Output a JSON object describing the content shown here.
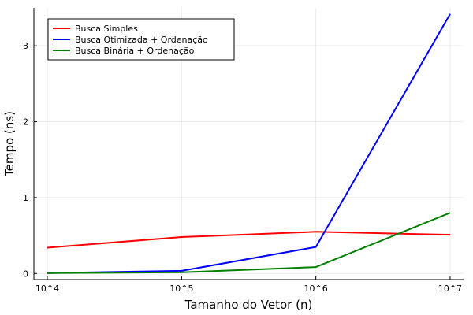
{
  "chart_data": {
    "type": "line",
    "title": "",
    "xlabel": "Tamanho do Vetor (n)",
    "ylabel": "Tempo (ns)",
    "x": [
      4,
      5,
      6,
      7
    ],
    "x_tick_labels": [
      "10^4",
      "10^5",
      "10^6",
      "10^7"
    ],
    "xlim": [
      3.9,
      7.1
    ],
    "ylim": [
      -0.08,
      3.5
    ],
    "y_ticks": [
      0,
      1,
      2,
      3
    ],
    "grid": true,
    "legend_position": "top-left",
    "series": [
      {
        "name": "Busca Simples",
        "color": "#ff0000",
        "values": [
          0.34,
          0.48,
          0.55,
          0.51
        ]
      },
      {
        "name": "Busca Otimizada + Ordenação",
        "color": "#0000ff",
        "values": [
          0.005,
          0.035,
          0.35,
          3.42
        ]
      },
      {
        "name": "Busca Binária + Ordenação",
        "color": "#008000",
        "values": [
          0.005,
          0.015,
          0.085,
          0.8
        ]
      }
    ]
  }
}
